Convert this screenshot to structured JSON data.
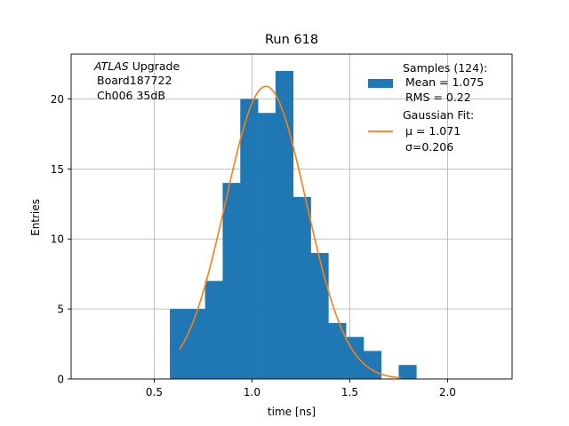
{
  "chart_data": {
    "type": "bar",
    "title": "Run 618",
    "xlabel": "time [ns]",
    "ylabel": "Entries",
    "xlim": [
      0.075,
      2.33
    ],
    "ylim": [
      0,
      23.2
    ],
    "xticks": [
      0.5,
      1.0,
      1.5,
      2.0
    ],
    "xtick_labels": [
      "0.5",
      "1.0",
      "1.5",
      "2.0"
    ],
    "yticks": [
      0,
      5,
      10,
      15,
      20
    ],
    "ytick_labels": [
      "0",
      "5",
      "10",
      "15",
      "20"
    ],
    "grid": true,
    "histogram": {
      "name": "Samples (124):",
      "color": "#1f77b4",
      "bins": [
        {
          "x0": 0.58,
          "x1": 0.67,
          "value": 5
        },
        {
          "x0": 0.67,
          "x1": 0.76,
          "value": 5
        },
        {
          "x0": 0.76,
          "x1": 0.85,
          "value": 7
        },
        {
          "x0": 0.85,
          "x1": 0.94,
          "value": 14
        },
        {
          "x0": 0.94,
          "x1": 1.03,
          "value": 20
        },
        {
          "x0": 1.03,
          "x1": 1.12,
          "value": 19
        },
        {
          "x0": 1.12,
          "x1": 1.21,
          "value": 22
        },
        {
          "x0": 1.21,
          "x1": 1.3,
          "value": 13
        },
        {
          "x0": 1.3,
          "x1": 1.39,
          "value": 9
        },
        {
          "x0": 1.39,
          "x1": 1.48,
          "value": 4
        },
        {
          "x0": 1.48,
          "x1": 1.57,
          "value": 3
        },
        {
          "x0": 1.57,
          "x1": 1.66,
          "value": 2
        },
        {
          "x0": 1.66,
          "x1": 1.75,
          "value": 0
        },
        {
          "x0": 1.75,
          "x1": 1.84,
          "value": 1
        }
      ]
    },
    "fit": {
      "name": "Gaussian Fit:",
      "color": "#ff7f0e",
      "amplitude": 20.9,
      "mu": 1.071,
      "sigma": 0.206,
      "x_range": [
        0.63,
        1.76
      ]
    },
    "legend": {
      "position": "top-right",
      "samples_label": "Samples (124):",
      "mean_label": "Mean = 1.075",
      "rms_label": "RMS = 0.22",
      "fit_label": "Gaussian Fit:",
      "mu_label": "μ = 1.071",
      "sigma_label": "σ=0.206"
    },
    "annotation": {
      "experiment": "ATLAS",
      "experiment_suffix": " Upgrade",
      "board": "Board187722",
      "channel": "Ch006 35dB"
    }
  }
}
